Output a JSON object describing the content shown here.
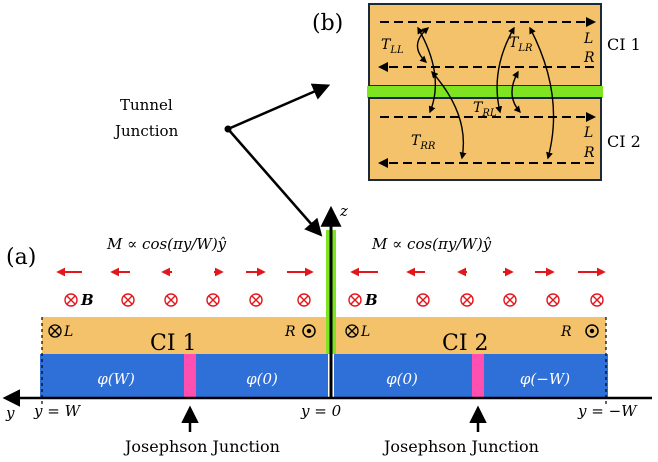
{
  "colors": {
    "ci_fill": "#f3c26a",
    "substrate": "#2f6fd8",
    "junction_pink": "#ff4fb0",
    "tunnel_green": "#7ee321",
    "arrow_red": "#e3171b",
    "outline": "#1a2a3a"
  },
  "panel_a": {
    "label": "(a)",
    "z_label": "z",
    "y_label": "y",
    "magnetization_left": "M ∝ cos(πy/W)ŷ",
    "magnetization_right": "M ∝ cos(πy/W)ŷ",
    "b_label": "B",
    "ci1_label": "CI 1",
    "ci2_label": "CI 2",
    "edge_L_label": "L",
    "edge_R_label": "R",
    "phases": [
      "φ(W)",
      "φ(0)",
      "φ(0)",
      "φ(−W)"
    ],
    "tick_left": "y = W",
    "tick_center": "y = 0",
    "tick_right": "y = −W",
    "jj_label": "Josephson Junction",
    "tunnel_label_line1": "Tunnel",
    "tunnel_label_line2": "Junction"
  },
  "panel_b": {
    "label": "(b)",
    "ci1_label": "CI 1",
    "ci2_label": "CI 2",
    "L": "L",
    "R": "R",
    "T_LL": "T",
    "T_LL_sub": "LL",
    "T_LR": "T",
    "T_LR_sub": "LR",
    "T_RL": "T",
    "T_RL_sub": "RL",
    "T_RR": "T",
    "T_RR_sub": "RR"
  }
}
